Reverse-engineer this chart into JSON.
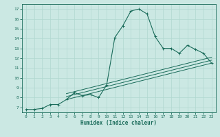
{
  "bg_color": "#cbe8e3",
  "line_color": "#1a6b5a",
  "grid_color": "#b0d8d0",
  "xlabel": "Humidex (Indice chaleur)",
  "ylim": [
    6.5,
    17.5
  ],
  "xlim": [
    -0.5,
    23.5
  ],
  "yticks": [
    7,
    8,
    9,
    10,
    11,
    12,
    13,
    14,
    15,
    16,
    17
  ],
  "xticks": [
    0,
    1,
    2,
    3,
    4,
    5,
    6,
    7,
    8,
    9,
    10,
    11,
    12,
    13,
    14,
    15,
    16,
    17,
    18,
    19,
    20,
    21,
    22,
    23
  ],
  "curve1_x": [
    0,
    1,
    2,
    3,
    4,
    5,
    6,
    7,
    8,
    9,
    10,
    11,
    12,
    13,
    14,
    15,
    16,
    17,
    18,
    19,
    20,
    21,
    22,
    23
  ],
  "curve1_y": [
    6.8,
    6.8,
    6.9,
    7.3,
    7.3,
    7.8,
    8.5,
    8.2,
    8.3,
    8.0,
    9.3,
    14.1,
    15.3,
    16.8,
    17.0,
    16.5,
    14.2,
    13.0,
    13.0,
    12.5,
    13.3,
    12.9,
    12.5,
    11.5
  ],
  "line2_x": [
    5,
    23
  ],
  "line2_y": [
    7.8,
    11.5
  ],
  "line3_x": [
    5,
    23
  ],
  "line3_y": [
    8.1,
    11.8
  ],
  "line4_x": [
    5,
    23
  ],
  "line4_y": [
    8.4,
    12.1
  ],
  "figsize": [
    3.2,
    2.0
  ],
  "dpi": 100
}
